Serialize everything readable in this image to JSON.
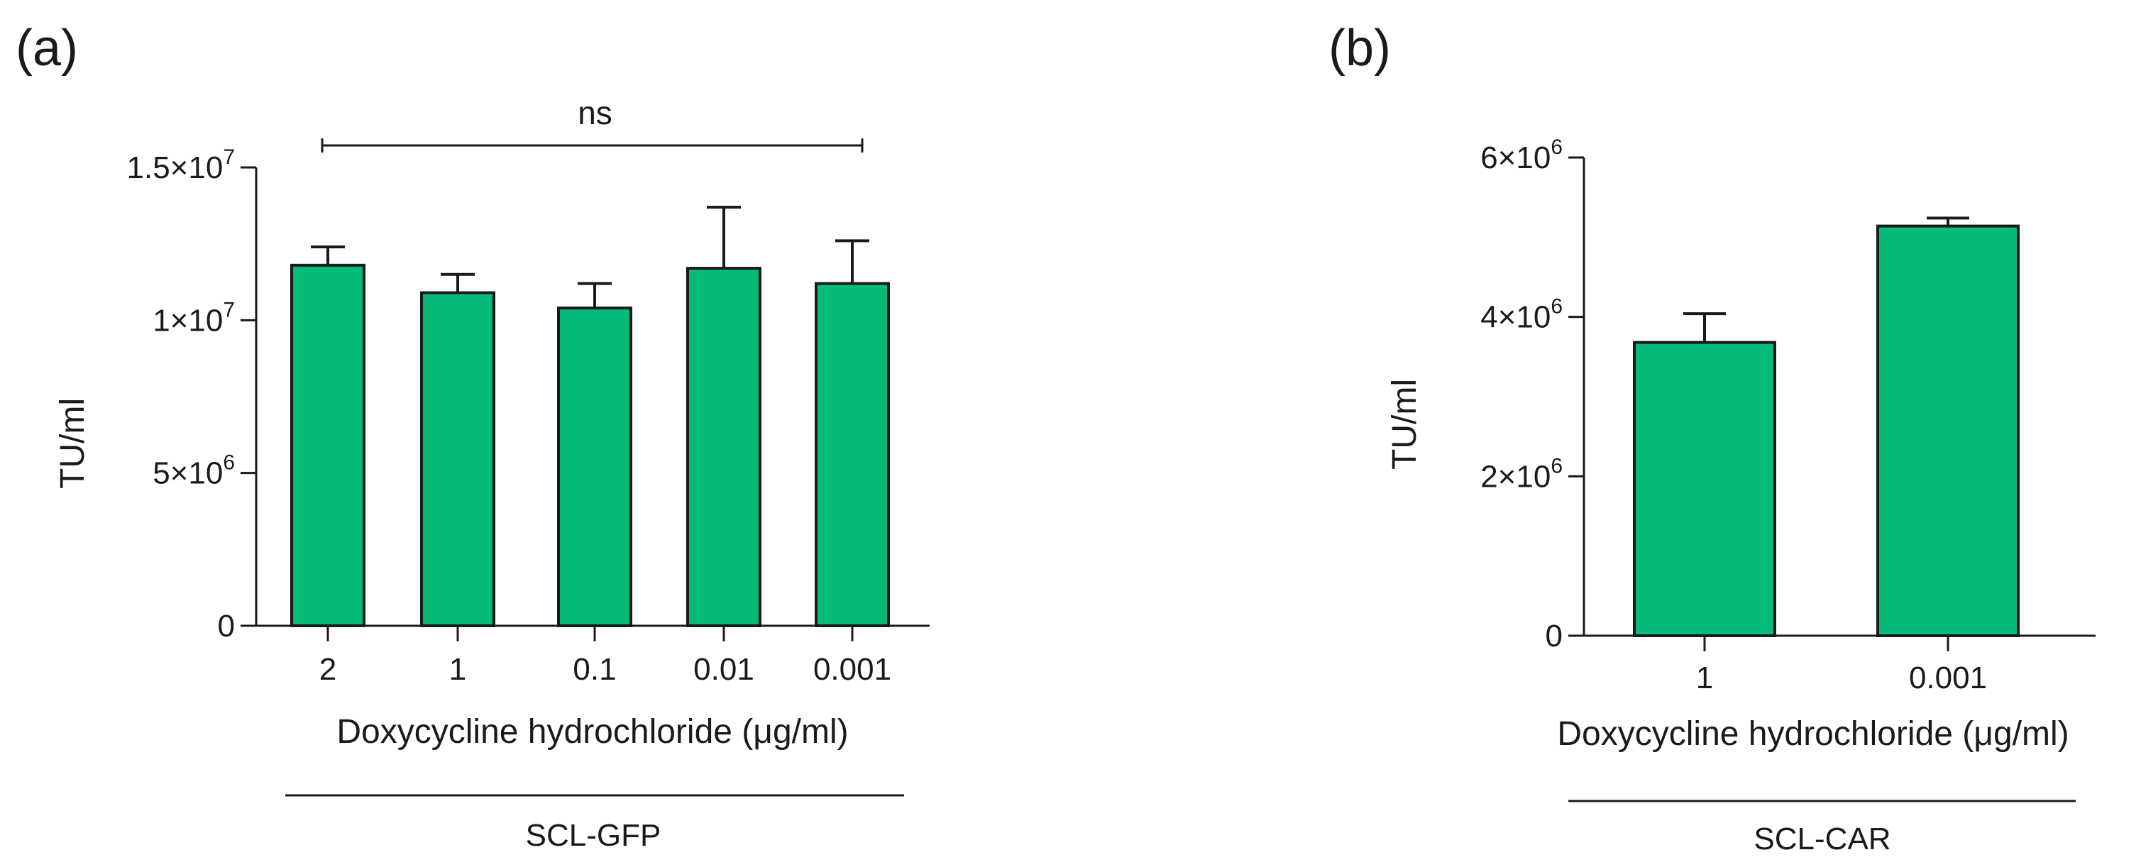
{
  "colors": {
    "bar_fill": "#05bb78",
    "stroke": "#1a1a1a"
  },
  "chart_data": [
    {
      "panel": "(a)",
      "type": "bar",
      "categories": [
        "2",
        "1",
        "0.1",
        "0.01",
        "0.001"
      ],
      "values": [
        11800000,
        10900000,
        10400000,
        11700000,
        11200000
      ],
      "error_upper": [
        600000,
        600000,
        800000,
        2000000,
        1400000
      ],
      "ylim": [
        0,
        15000000
      ],
      "yticks": [
        {
          "value": 0,
          "mantissa": "0",
          "exponent": ""
        },
        {
          "value": 5000000,
          "mantissa": "5×10",
          "exponent": "6"
        },
        {
          "value": 10000000,
          "mantissa": "1×10",
          "exponent": "7"
        },
        {
          "value": 15000000,
          "mantissa": "1.5×10",
          "exponent": "7"
        }
      ],
      "ylabel": "TU/ml",
      "xlabel": "Doxycycline hydrochloride (μg/ml)",
      "group_label": "SCL-GFP",
      "significance": {
        "label": "ns",
        "from": 0,
        "to": 4
      }
    },
    {
      "panel": "(b)",
      "type": "bar",
      "categories": [
        "1",
        "0.001"
      ],
      "values": [
        3680000,
        5140000
      ],
      "error_upper": [
        360000,
        100000
      ],
      "ylim": [
        0,
        6000000
      ],
      "yticks": [
        {
          "value": 0,
          "mantissa": "0",
          "exponent": ""
        },
        {
          "value": 2000000,
          "mantissa": "2×10",
          "exponent": "6"
        },
        {
          "value": 4000000,
          "mantissa": "4×10",
          "exponent": "6"
        },
        {
          "value": 6000000,
          "mantissa": "6×10",
          "exponent": "6"
        }
      ],
      "ylabel": "TU/ml",
      "xlabel": "Doxycycline hydrochloride (μg/ml)",
      "group_label": "SCL-CAR"
    }
  ]
}
